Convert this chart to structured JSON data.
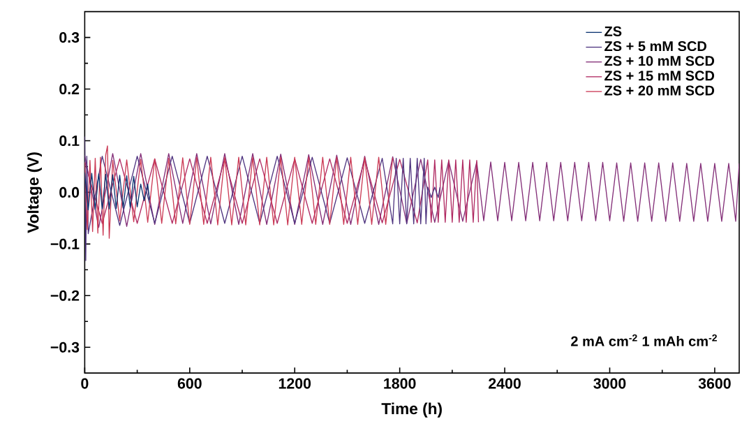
{
  "chart_data": {
    "type": "line",
    "xlabel": "Time (h)",
    "ylabel": "Voltage (V)",
    "xlim": [
      0,
      3740
    ],
    "ylim": [
      -0.35,
      0.35
    ],
    "xticks": [
      0,
      600,
      1200,
      1800,
      2400,
      3000,
      3600
    ],
    "yticks": [
      {
        "value": -0.3,
        "label": "−0.3"
      },
      {
        "value": -0.2,
        "label": "−0.2"
      },
      {
        "value": -0.1,
        "label": "−0.1"
      },
      {
        "value": 0.0,
        "label": "0.0"
      },
      0.1,
      0.2,
      0.3
    ],
    "legend": "top right",
    "annotations": [
      "2 mA cm$^{-2}$  1 mAh cm$^{-2}$"
    ],
    "series": [
      {
        "name": "ZS",
        "color": "#0b3470",
        "x": [
          0,
          20,
          40,
          60,
          80,
          100,
          120,
          140,
          160,
          180,
          200,
          220,
          240,
          260,
          280,
          300,
          320,
          340,
          360,
          370
        ],
        "values": [
          0.038,
          -0.034,
          0.037,
          -0.033,
          0.036,
          -0.032,
          0.035,
          -0.032,
          0.034,
          -0.031,
          0.033,
          -0.03,
          0.032,
          -0.029,
          0.031,
          -0.028,
          0.016,
          -0.016,
          0.016,
          -0.015
        ]
      },
      {
        "name": "ZS + 5 mM SCD",
        "color": "#4f3580",
        "x": [
          0,
          6,
          12,
          20,
          100,
          200,
          300,
          400,
          500,
          600,
          700,
          800,
          900,
          1000,
          1100,
          1200,
          1300,
          1400,
          1500,
          1600,
          1700,
          1760,
          1780,
          1800,
          1820,
          1840,
          1860,
          1880,
          1900,
          1920,
          1940,
          1950,
          1960,
          1980,
          2000,
          2020,
          2030
        ],
        "values": [
          0.108,
          -0.132,
          0.07,
          -0.08,
          0.07,
          -0.064,
          0.07,
          -0.06,
          0.07,
          -0.06,
          0.07,
          -0.06,
          0.07,
          -0.06,
          0.07,
          -0.06,
          0.068,
          -0.06,
          0.067,
          -0.06,
          0.066,
          -0.061,
          0.066,
          -0.061,
          0.066,
          -0.061,
          0.066,
          -0.061,
          0.066,
          -0.061,
          0.066,
          -0.061,
          0.01,
          -0.01,
          0.01,
          -0.01,
          0.01
        ]
      },
      {
        "name": "ZS + 10 mM SCD",
        "color": "#832e78",
        "x": [
          0,
          80,
          160,
          240,
          320,
          400,
          480,
          560,
          640,
          720,
          800,
          880,
          960,
          1040,
          1120,
          1200,
          1280,
          1360,
          1440,
          1520,
          1600,
          1680,
          1760,
          1840,
          1920,
          2000,
          2080,
          2160,
          2240,
          2280,
          2320,
          2360,
          2400,
          2440,
          2480,
          2520,
          2560,
          2600,
          2640,
          2680,
          2720,
          2760,
          2800,
          2840,
          2880,
          2920,
          2960,
          3000,
          3040,
          3080,
          3120,
          3160,
          3200,
          3240,
          3280,
          3320,
          3360,
          3400,
          3440,
          3480,
          3520,
          3560,
          3600,
          3640,
          3680,
          3720,
          3740
        ],
        "values": [
          0.072,
          -0.068,
          0.075,
          -0.066,
          0.075,
          -0.062,
          0.075,
          -0.06,
          0.075,
          -0.061,
          0.075,
          -0.062,
          0.075,
          -0.062,
          0.074,
          -0.062,
          0.073,
          -0.062,
          0.072,
          -0.062,
          0.07,
          -0.062,
          0.069,
          -0.06,
          0.064,
          -0.058,
          0.061,
          -0.056,
          0.059,
          -0.055,
          0.059,
          -0.055,
          0.058,
          -0.055,
          0.058,
          -0.055,
          0.058,
          -0.055,
          0.058,
          -0.055,
          0.058,
          -0.055,
          0.058,
          -0.055,
          0.058,
          -0.055,
          0.058,
          -0.055,
          0.057,
          -0.056,
          0.057,
          -0.056,
          0.057,
          -0.056,
          0.057,
          -0.056,
          0.057,
          -0.056,
          0.056,
          -0.056,
          0.056,
          -0.056,
          0.056,
          -0.056,
          0.056,
          -0.056,
          0.056
        ]
      },
      {
        "name": "ZS + 15 mM SCD",
        "color": "#b02a62",
        "x": [
          0,
          100,
          200,
          300,
          400,
          500,
          600,
          700,
          800,
          900,
          1000,
          1100,
          1200,
          1300,
          1400,
          1500,
          1600,
          1700,
          1800,
          1900,
          1960,
          1980,
          2000,
          2020,
          2040,
          2060,
          2080,
          2100,
          2120,
          2140,
          2160,
          2180,
          2200,
          2220,
          2240,
          2250
        ],
        "values": [
          0.06,
          -0.06,
          0.065,
          -0.06,
          0.065,
          -0.06,
          0.065,
          -0.06,
          0.065,
          -0.06,
          0.065,
          -0.06,
          0.065,
          -0.06,
          0.065,
          -0.06,
          0.064,
          -0.059,
          0.064,
          -0.059,
          0.063,
          -0.058,
          0.063,
          -0.058,
          0.063,
          -0.058,
          0.063,
          -0.058,
          0.063,
          -0.058,
          0.063,
          -0.058,
          0.063,
          -0.058,
          0.062,
          -0.058
        ]
      },
      {
        "name": "ZS + 20 mM SCD",
        "color": "#cb3a55",
        "x": [
          0,
          15,
          30,
          45,
          60,
          75,
          90,
          105,
          120,
          130,
          140,
          160,
          200,
          240,
          280,
          320,
          360,
          400,
          440,
          480,
          520,
          560,
          600,
          640,
          680,
          720,
          760,
          800,
          840,
          880,
          920,
          960,
          1000,
          1040,
          1080,
          1120,
          1160,
          1200,
          1240,
          1280,
          1320,
          1360,
          1400,
          1440,
          1480,
          1520,
          1560,
          1600,
          1640,
          1680,
          1720,
          1760
        ],
        "values": [
          0.058,
          -0.072,
          0.062,
          -0.076,
          0.066,
          -0.079,
          0.068,
          -0.083,
          0.072,
          0.09,
          -0.089,
          0.062,
          -0.055,
          0.063,
          -0.057,
          0.064,
          -0.058,
          0.065,
          -0.06,
          0.066,
          -0.061,
          0.067,
          -0.062,
          0.068,
          -0.062,
          0.068,
          -0.063,
          0.068,
          -0.063,
          0.068,
          -0.063,
          0.068,
          -0.063,
          0.068,
          -0.063,
          0.068,
          -0.063,
          0.068,
          -0.062,
          0.068,
          -0.062,
          0.068,
          -0.062,
          0.068,
          -0.062,
          0.068,
          -0.062,
          0.068,
          -0.062,
          0.068,
          -0.062,
          0.067
        ]
      }
    ]
  }
}
